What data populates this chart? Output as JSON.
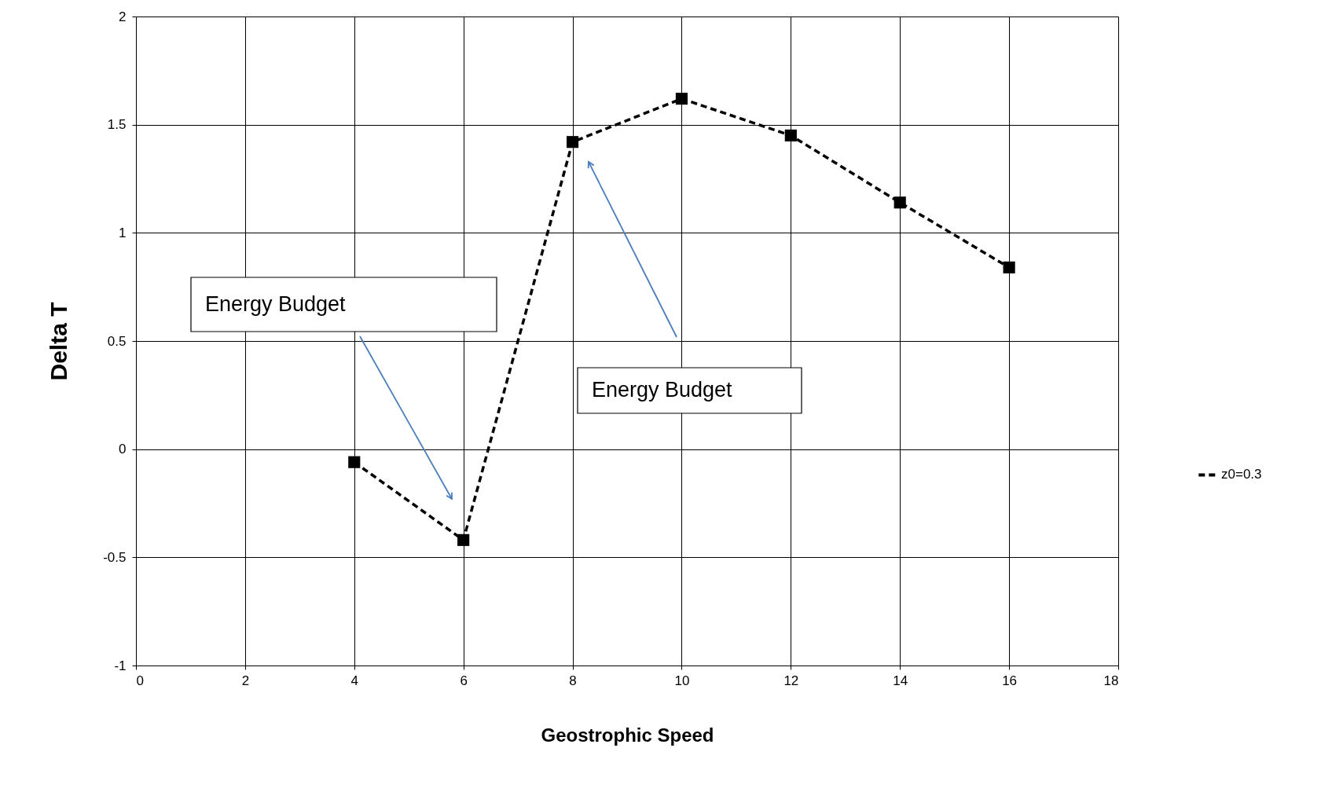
{
  "chart_data": {
    "type": "line",
    "xlabel": "Geostrophic Speed",
    "ylabel": "Delta T",
    "x": [
      4,
      6,
      8,
      10,
      12,
      14,
      16
    ],
    "series": [
      {
        "name": "z0=0.3",
        "color": "#000000",
        "values": [
          -0.06,
          -0.42,
          1.42,
          1.62,
          1.45,
          1.14,
          0.84
        ]
      }
    ],
    "marker": "square",
    "line_style": "dashed",
    "xlim": [
      0,
      18
    ],
    "xticks": [
      0,
      2,
      4,
      6,
      8,
      10,
      12,
      14,
      16,
      18
    ],
    "ylim": [
      -1,
      2
    ],
    "yticks": [
      -1,
      -0.5,
      0,
      0.5,
      1,
      1.5,
      2
    ],
    "grid": true,
    "legend": "right",
    "annotations": [
      "Energy Budget",
      "Energy Budget"
    ]
  }
}
